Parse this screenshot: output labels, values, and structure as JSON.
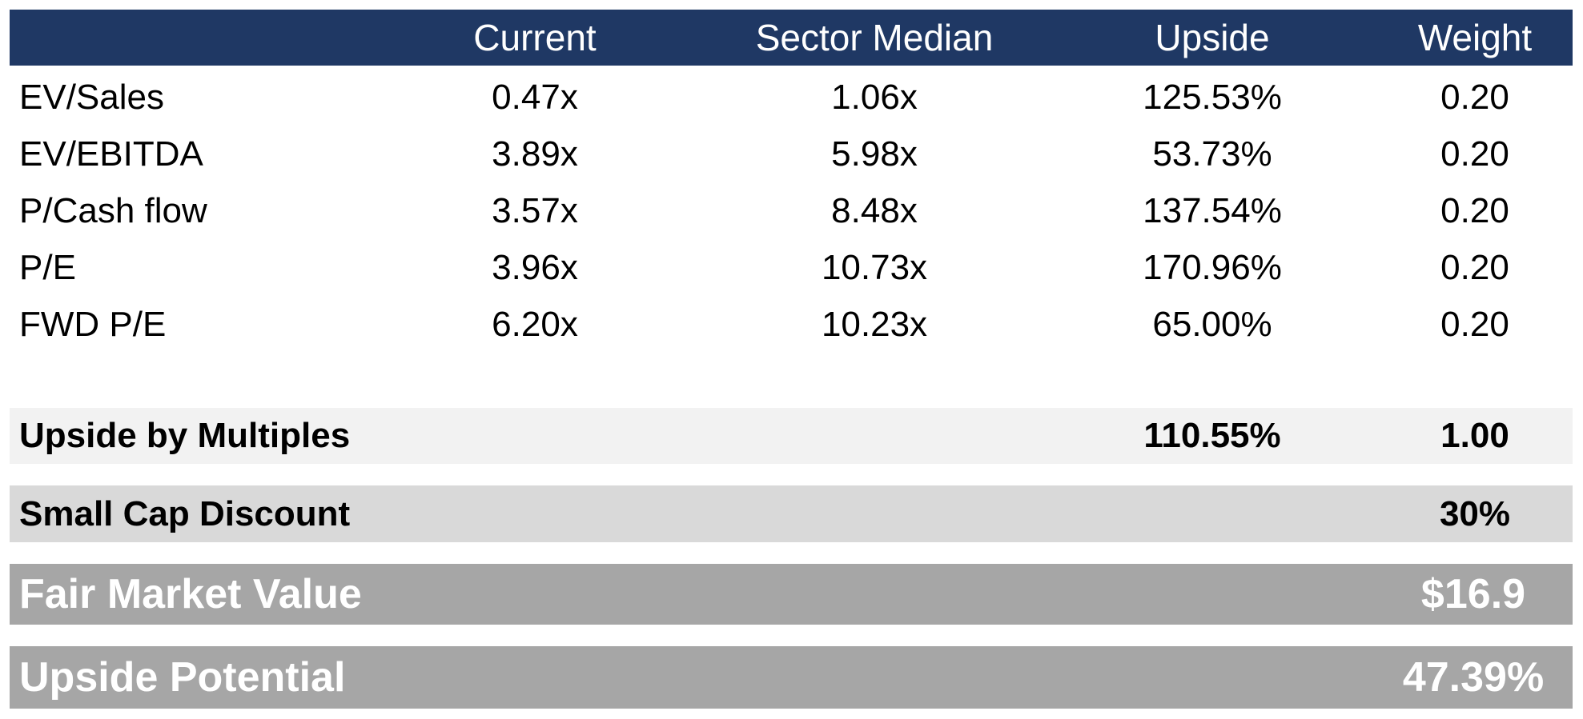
{
  "header": {
    "label": "",
    "current": "Current",
    "sector_median": "Sector Median",
    "upside": "Upside",
    "weight": "Weight"
  },
  "rows": [
    {
      "label": "EV/Sales",
      "current": "0.47x",
      "sector_median": "1.06x",
      "upside": "125.53%",
      "weight": "0.20"
    },
    {
      "label": "EV/EBITDA",
      "current": "3.89x",
      "sector_median": "5.98x",
      "upside": "53.73%",
      "weight": "0.20"
    },
    {
      "label": "P/Cash flow",
      "current": "3.57x",
      "sector_median": "8.48x",
      "upside": "137.54%",
      "weight": "0.20"
    },
    {
      "label": "P/E",
      "current": "3.96x",
      "sector_median": "10.73x",
      "upside": "170.96%",
      "weight": "0.20"
    },
    {
      "label": "FWD P/E",
      "current": "6.20x",
      "sector_median": "10.23x",
      "upside": "65.00%",
      "weight": "0.20"
    }
  ],
  "summary": {
    "upside_by_multiples": {
      "label": "Upside by Multiples",
      "upside": "110.55%",
      "weight": "1.00"
    },
    "small_cap_discount": {
      "label": "Small Cap Discount",
      "value": "30%"
    },
    "fair_market_value": {
      "label": "Fair Market Value",
      "value": "$16.9"
    },
    "upside_potential": {
      "label": "Upside Potential",
      "value": "47.39%"
    }
  },
  "colors": {
    "header_bg": "#1f3864",
    "band_light": "#f2f2f2",
    "band_mid": "#d9d9d9",
    "band_dark": "#a6a6a6"
  }
}
